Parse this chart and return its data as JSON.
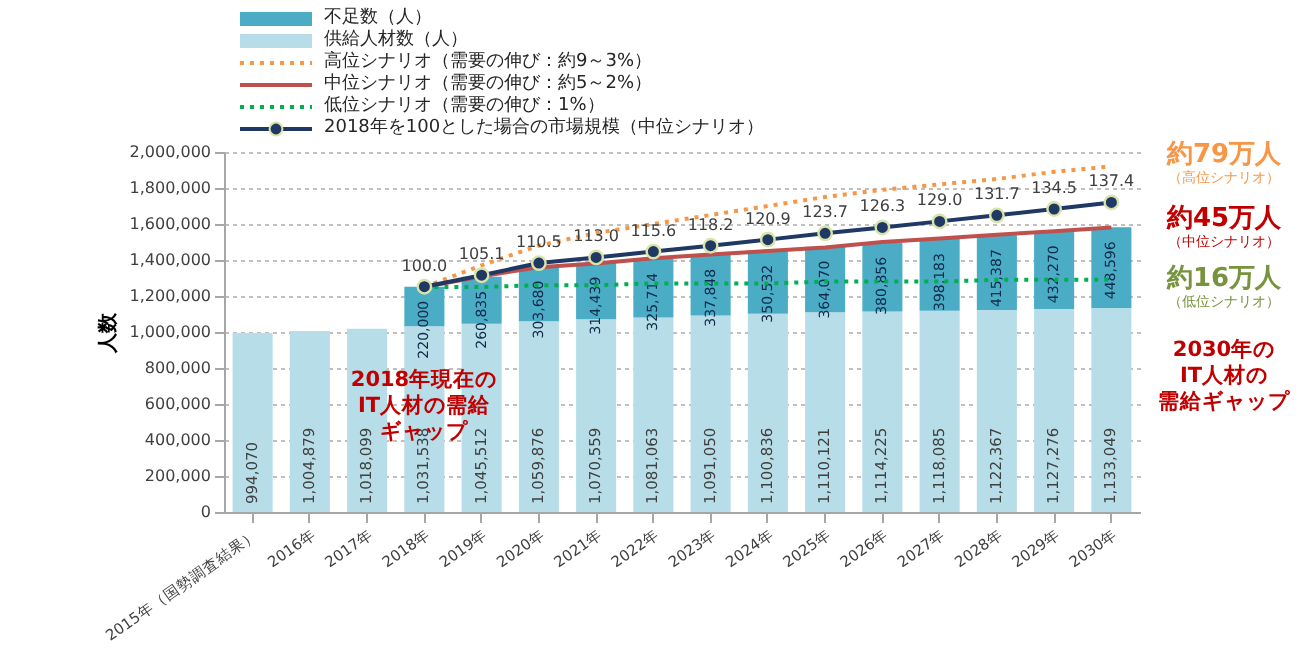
{
  "chart_data": {
    "type": "bar",
    "stacked": true,
    "ylabel": "人数",
    "legend": "top left",
    "grid": "y",
    "categories": [
      "2015年（国勢調査結果）",
      "2016年",
      "2017年",
      "2018年",
      "2019年",
      "2020年",
      "2021年",
      "2022年",
      "2023年",
      "2024年",
      "2025年",
      "2026年",
      "2027年",
      "2028年",
      "2029年",
      "2030年"
    ],
    "ylim": [
      0,
      2000000
    ],
    "yticks": [
      {
        "value": 0,
        "label": "0"
      },
      {
        "value": 200000,
        "label": "200,000"
      },
      {
        "value": 400000,
        "label": "400,000"
      },
      {
        "value": 600000,
        "label": "600,000"
      },
      {
        "value": 800000,
        "label": "800,000"
      },
      {
        "value": 1000000,
        "label": "1,000,000"
      },
      {
        "value": 1200000,
        "label": "1,200,000"
      },
      {
        "value": 1400000,
        "label": "1,400,000"
      },
      {
        "value": 1600000,
        "label": "1,600,000"
      },
      {
        "value": 1800000,
        "label": "1,800,000"
      },
      {
        "value": 2000000,
        "label": "2,000,000"
      }
    ],
    "y2lim": [
      0,
      159.8
    ],
    "series": [
      {
        "name": "供給人材数（人）",
        "color": "#b7dde8",
        "values": [
          994070,
          1004879,
          1018099,
          1031538,
          1045512,
          1059876,
          1070559,
          1081063,
          1091050,
          1100836,
          1110121,
          1114225,
          1118085,
          1122367,
          1127276,
          1133049
        ],
        "value_labels": [
          "994,070",
          "1,004,879",
          "1,018,099",
          "1,031,538",
          "1,045,512",
          "1,059,876",
          "1,070,559",
          "1,081,063",
          "1,091,050",
          "1,100,836",
          "1,110,121",
          "1,114,225",
          "1,118,085",
          "1,122,367",
          "1,127,276",
          "1,133,049"
        ]
      },
      {
        "name": "不足数（人）",
        "color": "#4bacc6",
        "values": [
          null,
          null,
          null,
          220000,
          260835,
          303680,
          314439,
          325714,
          337848,
          350532,
          364070,
          380856,
          398183,
          415387,
          432270,
          448596
        ],
        "value_labels": [
          null,
          null,
          null,
          "220,000",
          "260,835",
          "303,680",
          "314,439",
          "325,714",
          "337,848",
          "350,532",
          "364,070",
          "380,856",
          "398,183",
          "415,387",
          "432,270",
          "448,596"
        ]
      },
      {
        "name": "高位シナリオ（需要の伸び：約9～3%）",
        "type": "line",
        "color": "#f79646",
        "line_style": "dotted",
        "values": [
          null,
          null,
          null,
          1250000,
          1370000,
          1480000,
          1550000,
          1600000,
          1650000,
          1700000,
          1750000,
          1790000,
          1820000,
          1850000,
          1890000,
          1920000
        ]
      },
      {
        "name": "中位シナリオ（需要の伸び：約5～2%）",
        "type": "line",
        "color": "#c0504d",
        "line_style": "solid",
        "values": [
          null,
          null,
          null,
          1250000,
          1310000,
          1360000,
          1380000,
          1410000,
          1430000,
          1450000,
          1470000,
          1500000,
          1520000,
          1540000,
          1560000,
          1580000
        ]
      },
      {
        "name": "低位シナリオ（需要の伸び：1%）",
        "type": "line",
        "color": "#00b050",
        "line_style": "dotted",
        "values": [
          null,
          null,
          null,
          1250000,
          1250000,
          1260000,
          1260000,
          1270000,
          1270000,
          1270000,
          1280000,
          1280000,
          1280000,
          1290000,
          1290000,
          1290000
        ]
      },
      {
        "name": "2018年を100とした場合の市場規模（中位シナリオ）",
        "type": "line",
        "axis": "y2",
        "color": "#1f3864",
        "line_style": "solid",
        "marker": "circle",
        "values": [
          null,
          null,
          null,
          100.0,
          105.1,
          110.5,
          113.0,
          115.6,
          118.2,
          120.9,
          123.7,
          126.3,
          129.0,
          131.7,
          134.5,
          137.4
        ],
        "value_labels": [
          null,
          null,
          null,
          "100.0",
          "105.1",
          "110.5",
          "113.0",
          "115.6",
          "118.2",
          "120.9",
          "123.7",
          "126.3",
          "129.0",
          "131.7",
          "134.5",
          "137.4"
        ]
      }
    ],
    "annotations": [
      "約79万人",
      "（高位シナリオ）",
      "約45万人",
      "（中位シナリオ）",
      "約16万人",
      "（低位シナリオ）",
      "2018年現在の",
      "IT人材の需給",
      "ギャップ",
      "2030年の",
      "IT人材の",
      "需給ギャップ"
    ]
  }
}
